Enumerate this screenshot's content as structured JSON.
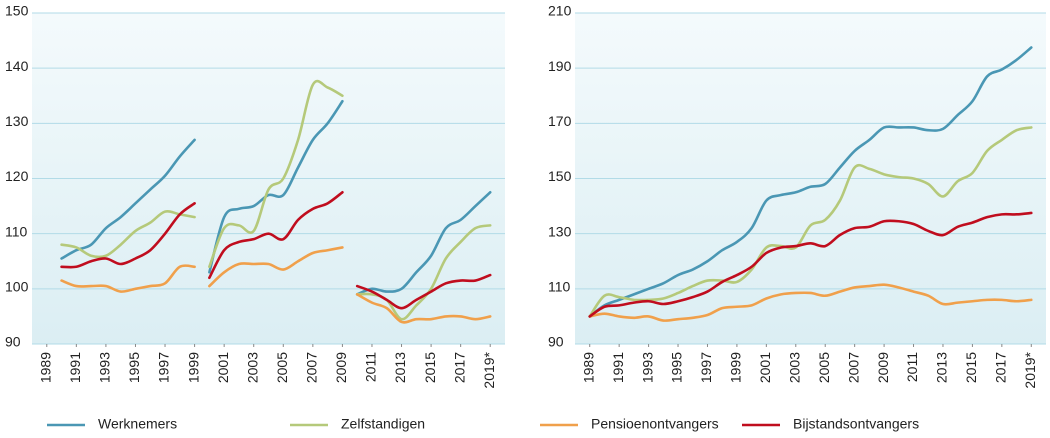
{
  "chart_data": [
    {
      "type": "line",
      "x": [
        1990,
        1991,
        1992,
        1993,
        1994,
        1995,
        1996,
        1997,
        1998,
        1999,
        null,
        2000,
        2001,
        2002,
        2003,
        2004,
        2005,
        2006,
        2007,
        2008,
        2009,
        null,
        2010,
        2011,
        2012,
        2013,
        2014,
        2015,
        2016,
        2017,
        2018,
        2019
      ],
      "xlim": [
        1988,
        2020
      ],
      "xticks": [
        1989,
        1991,
        1993,
        1995,
        1997,
        1999,
        2001,
        2003,
        2005,
        2007,
        2009,
        2011,
        2013,
        2015,
        2017,
        {
          "value": 2019,
          "label": "2019*"
        }
      ],
      "ylim": [
        90,
        150
      ],
      "yticks": [
        90,
        100,
        110,
        120,
        130,
        140,
        150
      ],
      "grid": true,
      "series": [
        {
          "name": "Werknemers",
          "color": "#4a97b4",
          "values": [
            105.5,
            107,
            108,
            111,
            113,
            115.5,
            118,
            120.5,
            124,
            127,
            null,
            103,
            113,
            114.5,
            115,
            117,
            117,
            122,
            127,
            130,
            134,
            null,
            99,
            100,
            99.5,
            100,
            103,
            106,
            111,
            112.5,
            115,
            117.5
          ]
        },
        {
          "name": "Zelfstandigen",
          "color": "#b5c97a",
          "values": [
            108,
            107.5,
            106,
            106,
            108,
            110.5,
            112,
            114,
            113.5,
            113,
            null,
            104,
            111,
            111.5,
            110.5,
            118,
            120,
            127,
            137,
            136.5,
            135,
            null,
            99,
            99,
            98,
            94.5,
            97,
            100,
            105.5,
            108.5,
            111,
            111.5
          ]
        },
        {
          "name": "Pensioenontvangers",
          "color": "#f0a04b",
          "values": [
            101.5,
            100.5,
            100.5,
            100.5,
            99.5,
            100,
            100.5,
            101,
            104,
            104,
            null,
            100.5,
            103,
            104.5,
            104.5,
            104.5,
            103.5,
            105,
            106.5,
            107,
            107.5,
            null,
            99,
            97.5,
            96.5,
            94,
            94.5,
            94.5,
            95,
            95,
            94.5,
            95
          ]
        },
        {
          "name": "Bijstandsontvangers",
          "color": "#c00d1e",
          "values": [
            104,
            104,
            105,
            105.5,
            104.5,
            105.5,
            107,
            110,
            113.5,
            115.5,
            null,
            102,
            107,
            108.5,
            109,
            110,
            109,
            112.5,
            114.5,
            115.5,
            117.5,
            null,
            100.5,
            99.5,
            98,
            96.5,
            98,
            99.5,
            101,
            101.5,
            101.5,
            102.5
          ]
        }
      ]
    },
    {
      "type": "line",
      "x": [
        1989,
        1990,
        1991,
        1992,
        1993,
        1994,
        1995,
        1996,
        1997,
        1998,
        1999,
        2000,
        2001,
        2002,
        2003,
        2004,
        2005,
        2006,
        2007,
        2008,
        2009,
        2010,
        2011,
        2012,
        2013,
        2014,
        2015,
        2016,
        2017,
        2018,
        2019
      ],
      "xlim": [
        1988,
        2020
      ],
      "xticks": [
        1989,
        1991,
        1993,
        1995,
        1997,
        1999,
        2001,
        2003,
        2005,
        2007,
        2009,
        2011,
        2013,
        2015,
        2017,
        {
          "value": 2019,
          "label": "2019*"
        }
      ],
      "ylim": [
        90,
        210
      ],
      "yticks": [
        90,
        110,
        130,
        150,
        170,
        190,
        210
      ],
      "grid": true,
      "series": [
        {
          "color": "#4a97b4",
          "values": [
            100,
            104,
            106,
            108,
            110,
            112,
            115,
            117,
            120,
            124,
            127,
            132,
            142,
            144,
            145,
            147,
            148,
            154,
            160,
            164,
            168.5,
            168.5,
            168.5,
            167.5,
            168,
            173,
            178,
            187,
            189.5,
            193,
            197.5
          ]
        },
        {
          "color": "#b5c97a",
          "values": [
            100,
            107.5,
            107,
            106,
            106,
            106.5,
            108.5,
            111,
            113,
            113,
            112.5,
            117,
            125,
            125.5,
            125,
            133,
            135,
            142,
            154,
            153.5,
            151.5,
            150.5,
            150,
            148,
            143.5,
            149,
            152,
            160,
            164,
            167.5,
            168.5
          ]
        },
        {
          "color": "#f0a04b",
          "values": [
            100,
            101,
            100,
            99.5,
            100,
            98.5,
            99,
            99.5,
            100.5,
            103,
            103.5,
            104,
            106.5,
            108,
            108.5,
            108.5,
            107.5,
            109,
            110.5,
            111,
            111.5,
            110.5,
            109,
            107.5,
            104.5,
            105,
            105.5,
            106,
            106,
            105.5,
            106
          ]
        },
        {
          "color": "#c00d1e",
          "values": [
            100,
            103.5,
            104,
            105,
            105.5,
            104.5,
            105.5,
            107,
            109,
            112.5,
            115,
            118,
            123,
            125,
            125.5,
            126.5,
            125.5,
            129.5,
            132,
            132.5,
            134.5,
            134.5,
            133.5,
            131,
            129.5,
            132.5,
            134,
            136,
            137,
            137,
            137.5
          ]
        }
      ]
    }
  ]
}
